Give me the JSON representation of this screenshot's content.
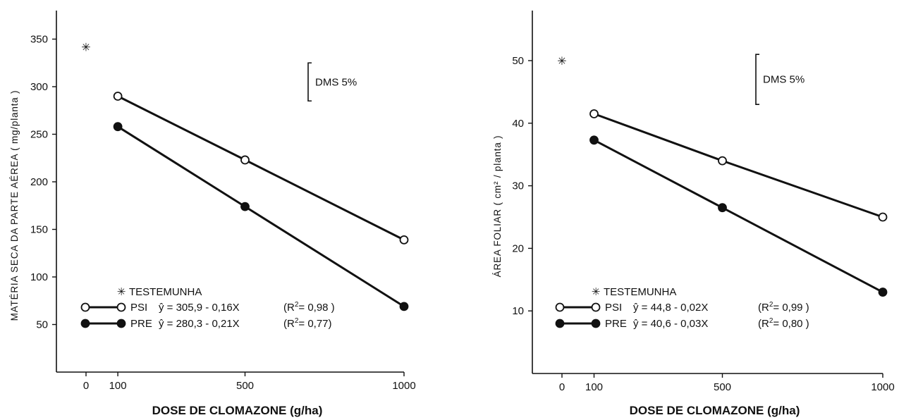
{
  "chart_data": [
    {
      "type": "line",
      "ylabel": "MATÉRIA SECA DA PARTE AÉREA  ( mg/planta )",
      "xlabel": "DOSE DE CLOMAZONE (g/ha)",
      "ylim": [
        0,
        380
      ],
      "xlim": [
        -10,
        1000
      ],
      "yticks": [
        50,
        100,
        150,
        200,
        250,
        300,
        350
      ],
      "yticks_labels": [
        "50",
        "100",
        "150",
        "200",
        "250",
        "300",
        "350"
      ],
      "xticks": [
        0,
        100,
        500,
        1000
      ],
      "xticks_labels": [
        "0",
        "100",
        "500",
        "1000"
      ],
      "grid": false,
      "dms_label": "DMS 5%",
      "dms_range": [
        285,
        325
      ],
      "control": {
        "name": "TESTEMUNHA",
        "x": 0,
        "y": 342
      },
      "series": [
        {
          "name": "PSI",
          "marker": "open",
          "x": [
            100,
            500,
            1000
          ],
          "y": [
            290,
            223,
            139
          ],
          "equation": "ŷ = 305,9 - 0,16X",
          "r2_prefix": "(R",
          "r2_value": "= 0,98 )"
        },
        {
          "name": "PRE",
          "marker": "filled",
          "x": [
            100,
            500,
            1000
          ],
          "y": [
            258,
            174,
            69
          ],
          "equation": "ŷ = 280,3 - 0,21X",
          "r2_prefix": "(R",
          "r2_value": "= 0,77)"
        }
      ],
      "legend_control_label": "TESTEMUNHA"
    },
    {
      "type": "line",
      "ylabel": "ÁREA FOLIAR  ( cm² / planta )",
      "xlabel": "DOSE DE CLOMAZONE (g/ha)",
      "ylim": [
        0,
        58
      ],
      "xlim": [
        -10,
        1000
      ],
      "yticks": [
        10,
        20,
        30,
        40,
        50
      ],
      "yticks_labels": [
        "10",
        "20",
        "30",
        "40",
        "50"
      ],
      "xticks": [
        0,
        100,
        500,
        1000
      ],
      "xticks_labels": [
        "0",
        "100",
        "500",
        "1000"
      ],
      "grid": false,
      "dms_label": "DMS 5%",
      "dms_range": [
        43,
        51
      ],
      "control": {
        "name": "TESTEMUNHA",
        "x": 0,
        "y": 50
      },
      "series": [
        {
          "name": "PSI",
          "marker": "open",
          "x": [
            100,
            500,
            1000
          ],
          "y": [
            41.5,
            34,
            25
          ],
          "equation": "ŷ = 44,8 - 0,02X",
          "r2_prefix": "(R",
          "r2_value": "= 0,99 )"
        },
        {
          "name": "PRE",
          "marker": "filled",
          "x": [
            100,
            500,
            1000
          ],
          "y": [
            37.3,
            26.5,
            13
          ],
          "equation": "ŷ = 40,6 - 0,03X",
          "r2_prefix": "(R",
          "r2_value": "= 0,80 )"
        }
      ],
      "legend_control_label": "TESTEMUNHA"
    }
  ]
}
